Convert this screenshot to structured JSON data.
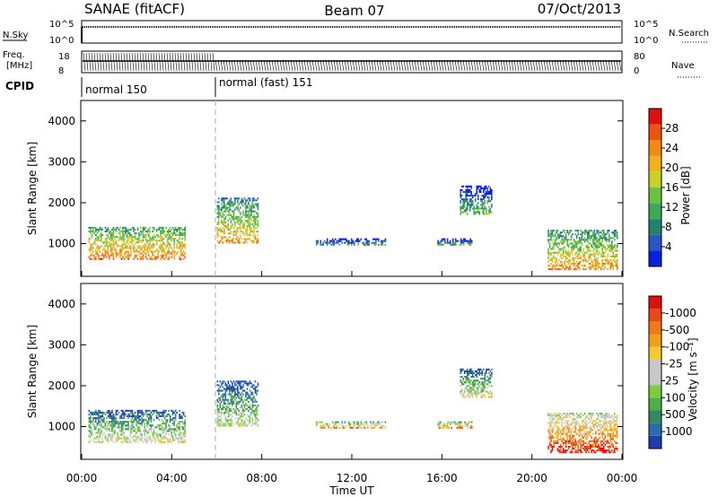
{
  "header": {
    "station": "SANAE (fitACF)",
    "beam": "Beam 07",
    "date": "07/Oct/2013"
  },
  "top_panels": {
    "nsky_label": "N.Sky",
    "nsky_ticks": [
      "10^5",
      "10^0"
    ],
    "nsearch_label": "N.Search",
    "nsearch_ticks": [
      "10^5",
      "10^0"
    ],
    "freq_label_1": "Freq.",
    "freq_label_2": "[MHz]",
    "freq_ticks": [
      "18",
      "8"
    ],
    "nave_label": "Nave",
    "nave_ticks": [
      "80",
      "0"
    ],
    "cpid_label": "CPID",
    "cpid_segments": [
      {
        "label": "normal 150",
        "start_hour": 0,
        "end_hour": 6
      },
      {
        "label": "normal (fast) 151",
        "start_hour": 6,
        "end_hour": 24
      }
    ]
  },
  "chart_data": [
    {
      "type": "heatmap",
      "name": "power",
      "ylabel": "Slant Range [km]",
      "ylim": [
        200,
        4500
      ],
      "yticks": [
        1000,
        2000,
        3000,
        4000
      ],
      "xlim": [
        0,
        24
      ],
      "colorbar_label": "Power [dB]",
      "colorbar_ticks": [
        "4",
        "8",
        "12",
        "16",
        "20",
        "24",
        "28"
      ],
      "colorbar_colors": [
        "#0a1fe0",
        "#2a55c8",
        "#23806e",
        "#3ea85a",
        "#68c33e",
        "#c8d02a",
        "#f2b21c",
        "#f08a14",
        "#ea5412",
        "#e01010"
      ],
      "regions": [
        {
          "t0": 0.3,
          "t1": 4.6,
          "r0": 600,
          "r1": 1400,
          "level": 0.55
        },
        {
          "t0": 6.0,
          "t1": 7.8,
          "r0": 1000,
          "r1": 2100,
          "level": 0.45
        },
        {
          "t0": 10.4,
          "t1": 13.5,
          "r0": 950,
          "r1": 1100,
          "level": 0.1
        },
        {
          "t0": 15.8,
          "t1": 17.3,
          "r0": 950,
          "r1": 1100,
          "level": 0.1
        },
        {
          "t0": 16.8,
          "t1": 18.2,
          "r0": 1700,
          "r1": 2400,
          "level": 0.2
        },
        {
          "t0": 20.7,
          "t1": 23.8,
          "r0": 350,
          "r1": 1300,
          "level": 0.5
        }
      ]
    },
    {
      "type": "heatmap",
      "name": "velocity",
      "ylabel": "Slant Range [km]",
      "ylim": [
        200,
        4500
      ],
      "yticks": [
        1000,
        2000,
        3000,
        4000
      ],
      "xlabel": "Time UT",
      "xlim": [
        0,
        24
      ],
      "xtick_labels": [
        "00:00",
        "04:00",
        "08:00",
        "12:00",
        "16:00",
        "20:00",
        "00:00"
      ],
      "xtick_hours": [
        0,
        4,
        8,
        12,
        16,
        20,
        24
      ],
      "colorbar_label": "Velocity [m s⁻¹]",
      "colorbar_ticks": [
        "1000",
        "500",
        "100",
        "25",
        "-25",
        "-100",
        "-500",
        "-1000"
      ],
      "colorbar_colors": [
        "#1c3ea8",
        "#2e6ab0",
        "#2f8a5e",
        "#4fae4a",
        "#7ccf3c",
        "#c8c8c8",
        "#c8c8c8",
        "#f2cc2a",
        "#f0a020",
        "#ee7a18",
        "#e84a14",
        "#e01010"
      ],
      "regions": [
        {
          "t0": 0.3,
          "t1": 4.6,
          "r0": 600,
          "r1": 1400,
          "level": 0.3
        },
        {
          "t0": 6.0,
          "t1": 7.8,
          "r0": 1000,
          "r1": 2100,
          "level": 0.25
        },
        {
          "t0": 10.4,
          "t1": 13.5,
          "r0": 950,
          "r1": 1100,
          "level": 0.5
        },
        {
          "t0": 15.8,
          "t1": 17.3,
          "r0": 950,
          "r1": 1100,
          "level": 0.5
        },
        {
          "t0": 16.8,
          "t1": 18.2,
          "r0": 1700,
          "r1": 2400,
          "level": 0.3
        },
        {
          "t0": 20.7,
          "t1": 23.8,
          "r0": 350,
          "r1": 1300,
          "level": 0.7
        }
      ]
    }
  ]
}
